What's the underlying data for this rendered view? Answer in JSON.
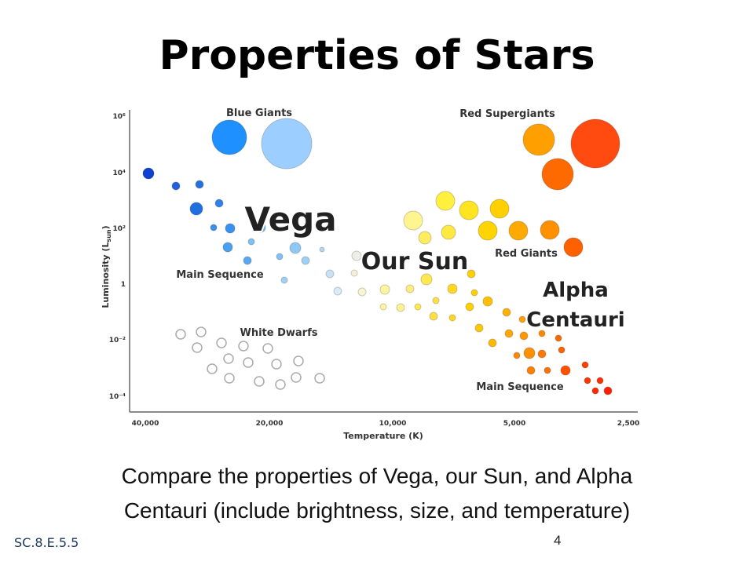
{
  "title": "Properties of Stars",
  "diagram": {
    "y_axis_label": "Luminosity (L",
    "y_axis_label_sub": "sun",
    "y_axis_label_end": ")",
    "y_ticks": [
      "10⁶",
      "10⁴",
      "10²",
      "1",
      "10⁻²",
      "10⁻⁴"
    ],
    "x_axis_label": "Temperature (K)",
    "x_ticks": [
      "40,000",
      "20,000",
      "10,000",
      "5,000",
      "2,500"
    ],
    "regions": [
      "Blue Giants",
      "Red Supergiants",
      "Red Giants",
      "Main Sequence",
      "White Dwarfs",
      "Main Sequence"
    ],
    "callouts": [
      "Vega",
      "Our Sun",
      "Alpha",
      "Centauri"
    ]
  },
  "body": [
    "Compare the properties of Vega, our Sun, and Alpha",
    "Centauri (include brightness, size, and temperature)"
  ],
  "footer": {
    "code": "SC.8.E.5.5",
    "page": "4"
  }
}
